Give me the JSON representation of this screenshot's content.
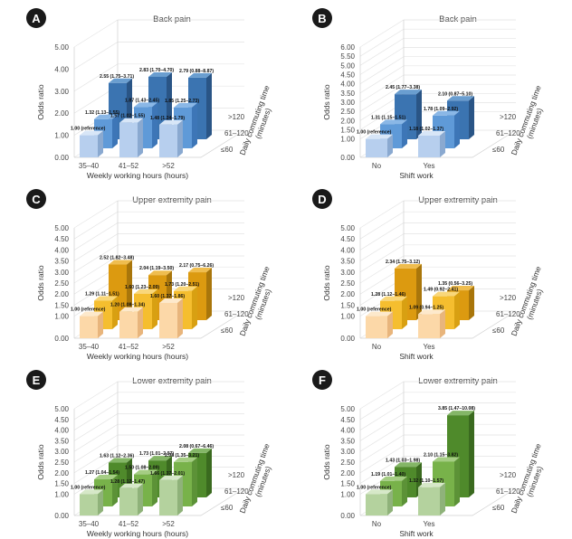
{
  "axis_label_or": "Odds ratio",
  "chart_data": [
    {
      "id": "A",
      "type": "bar",
      "title": "Back pain",
      "color": "blue",
      "categories": [
        "35–40",
        "41–52",
        ">52"
      ],
      "xlabel": "Weekly working hours (hours)",
      "depth_categories": [
        "≤60",
        "61–120",
        ">120"
      ],
      "depth_label": "Daily commuting time (minutes)",
      "ylabel": "Odds ratio",
      "ylim": [
        0,
        5
      ],
      "yticks": [
        "0.00",
        "1.00",
        "2.00",
        "3.00",
        "4.00",
        "5.00"
      ],
      "series": [
        {
          "name": "≤60",
          "values": [
            1.0,
            1.57,
            1.48
          ],
          "labels": [
            "1.00 (reference)",
            "1.57 (1.02–1.55)",
            "1.48 (1.24–1.79)"
          ]
        },
        {
          "name": "61–120",
          "values": [
            1.32,
            1.87,
            1.85
          ],
          "labels": [
            "1.32 (1.13–1.55)",
            "1.87 (1.43–2.45)",
            "1.85 (1.25–2.73)"
          ]
        },
        {
          "name": ">120",
          "values": [
            2.55,
            2.83,
            2.79
          ],
          "labels": [
            "2.55 (1.75–3.71)",
            "2.83 (1.70–4.70)",
            "2.79 (0.88–8.87)"
          ]
        }
      ]
    },
    {
      "id": "B",
      "type": "bar",
      "title": "Back pain",
      "color": "blue",
      "categories": [
        "No",
        "Yes"
      ],
      "xlabel": "Shift work",
      "depth_categories": [
        "≤60",
        "61–120",
        ">120"
      ],
      "depth_label": "Daily commuting time (minutes)",
      "ylabel": "Odds ratio",
      "ylim": [
        0,
        6
      ],
      "yticks": [
        "0.00",
        "1.00",
        "1.50",
        "2.00",
        "2.50",
        "3.00",
        "3.50",
        "4.00",
        "4.50",
        "5.00",
        "5.50",
        "6.00"
      ],
      "series": [
        {
          "name": "≤60",
          "values": [
            1.0,
            1.18
          ],
          "labels": [
            "1.00 (reference)",
            "1.18 (1.02–1.37)"
          ]
        },
        {
          "name": "61–120",
          "values": [
            1.31,
            1.78
          ],
          "labels": [
            "1.31 (1.15–1.51)",
            "1.78 (1.09–2.92)"
          ]
        },
        {
          "name": ">120",
          "values": [
            2.45,
            2.1
          ],
          "labels": [
            "2.45 (1.77–3.38)",
            "2.10 (0.87–5.10)"
          ]
        }
      ]
    },
    {
      "id": "C",
      "type": "bar",
      "title": "Upper extremity pain",
      "color": "orange",
      "categories": [
        "35–40",
        "41–52",
        ">52"
      ],
      "xlabel": "Weekly working hours (hours)",
      "depth_categories": [
        "≤60",
        "61–120",
        ">120"
      ],
      "depth_label": "Daily commuting time (minutes)",
      "ylabel": "Odds ratio",
      "ylim": [
        0,
        5
      ],
      "yticks": [
        "0.00",
        "1.00",
        "1.50",
        "2.00",
        "2.50",
        "3.00",
        "3.50",
        "4.00",
        "4.50",
        "5.00"
      ],
      "series": [
        {
          "name": "≤60",
          "values": [
            1.0,
            1.2,
            1.6
          ],
          "labels": [
            "1.00 (reference)",
            "1.20 (1.08–1.34)",
            "1.60 (1.37–1.86)"
          ]
        },
        {
          "name": "61–120",
          "values": [
            1.29,
            1.6,
            1.73
          ],
          "labels": [
            "1.29 (1.11–1.51)",
            "1.60 (1.23–2.09)",
            "1.73 (1.20–2.51)"
          ]
        },
        {
          "name": ">120",
          "values": [
            2.52,
            2.04,
            2.17
          ],
          "labels": [
            "2.52 (1.82–3.48)",
            "2.04 (1.19–3.50)",
            "2.17 (0.75–6.26)"
          ]
        }
      ]
    },
    {
      "id": "D",
      "type": "bar",
      "title": "Upper extremity pain",
      "color": "orange",
      "categories": [
        "No",
        "Yes"
      ],
      "xlabel": "Shift work",
      "depth_categories": [
        "≤60",
        "61–120",
        ">120"
      ],
      "depth_label": "Daily commuting time (minutes)",
      "ylabel": "Odds ratio",
      "ylim": [
        0,
        5
      ],
      "yticks": [
        "0.00",
        "1.00",
        "1.50",
        "2.00",
        "2.50",
        "3.00",
        "3.50",
        "4.00",
        "4.50",
        "5.00"
      ],
      "series": [
        {
          "name": "≤60",
          "values": [
            1.0,
            1.09
          ],
          "labels": [
            "1.00 (reference)",
            "1.09 (0.94–1.25)"
          ]
        },
        {
          "name": "61–120",
          "values": [
            1.28,
            1.49
          ],
          "labels": [
            "1.28 (1.12–1.46)",
            "1.49 (0.92–2.41)"
          ]
        },
        {
          "name": ">120",
          "values": [
            2.34,
            1.35
          ],
          "labels": [
            "2.34 (1.75–3.12)",
            "1.35 (0.56–3.25)"
          ]
        }
      ]
    },
    {
      "id": "E",
      "type": "bar",
      "title": "Lower extremity pain",
      "color": "green",
      "categories": [
        "35–40",
        "41–52",
        ">52"
      ],
      "xlabel": "Weekly working hours (hours)",
      "depth_categories": [
        "≤60",
        "61–120",
        ">120"
      ],
      "depth_label": "Daily commuting time (minutes)",
      "ylabel": "Odds ratio",
      "ylim": [
        0,
        5
      ],
      "yticks": [
        "0.00",
        "1.00",
        "1.50",
        "2.00",
        "2.50",
        "3.00",
        "3.50",
        "4.00",
        "4.50",
        "5.00"
      ],
      "series": [
        {
          "name": "≤60",
          "values": [
            1.0,
            1.28,
            1.66
          ],
          "labels": [
            "1.00 (reference)",
            "1.28 (1.12–1.47)",
            "1.66 (1.37–2.01)"
          ]
        },
        {
          "name": "61–120",
          "values": [
            1.27,
            1.5,
            2.08
          ],
          "labels": [
            "1.27 (1.04–1.54)",
            "1.50 (1.08–2.09)",
            "2.08 (1.35–3.21)"
          ]
        },
        {
          "name": ">120",
          "values": [
            1.63,
            1.73,
            2.08
          ],
          "labels": [
            "1.63 (1.12–2.36)",
            "1.73 (1.01–2.97)",
            "2.08 (0.67–6.46)"
          ]
        }
      ]
    },
    {
      "id": "F",
      "type": "bar",
      "title": "Lower extremity pain",
      "color": "green",
      "categories": [
        "No",
        "Yes"
      ],
      "xlabel": "Shift work",
      "depth_categories": [
        "≤60",
        "61–120",
        ">120"
      ],
      "depth_label": "Daily commuting time (minutes)",
      "ylabel": "Odds ratio",
      "ylim": [
        0,
        5
      ],
      "yticks": [
        "0.00",
        "1.00",
        "1.50",
        "2.00",
        "2.50",
        "3.00",
        "3.50",
        "4.00",
        "4.50",
        "5.00"
      ],
      "series": [
        {
          "name": "≤60",
          "values": [
            1.0,
            1.32
          ],
          "labels": [
            "1.00 (reference)",
            "1.32 (1.10–1.57)"
          ]
        },
        {
          "name": "61–120",
          "values": [
            1.19,
            2.1
          ],
          "labels": [
            "1.19 (1.01–1.40)",
            "2.10 (1.15–3.82)"
          ]
        },
        {
          "name": ">120",
          "values": [
            1.43,
            3.85
          ],
          "labels": [
            "1.43 (1.03–1.98)",
            "3.85 (1.47–10.08)"
          ]
        }
      ]
    }
  ],
  "palettes": {
    "blue": {
      "front": [
        "#b7cfee",
        "#5f9ad8",
        "#3b74b1"
      ],
      "top": [
        "#d8e6f7",
        "#8ab7e6",
        "#6a9ed0"
      ],
      "side": [
        "#8aa9d0",
        "#3d76b7",
        "#2a5586"
      ]
    },
    "orange": {
      "front": [
        "#fcd8a8",
        "#f5be2f",
        "#dc9a10"
      ],
      "top": [
        "#fde9cc",
        "#f9d77a",
        "#efbd4f"
      ],
      "side": [
        "#e8b57c",
        "#d8a012",
        "#a9760b"
      ]
    },
    "green": {
      "front": [
        "#b4d29e",
        "#78b24a",
        "#4f8a2b"
      ],
      "top": [
        "#d6e8c8",
        "#a5cd84",
        "#84b667"
      ],
      "side": [
        "#8fb27a",
        "#5c9237",
        "#3a6a1f"
      ]
    }
  }
}
